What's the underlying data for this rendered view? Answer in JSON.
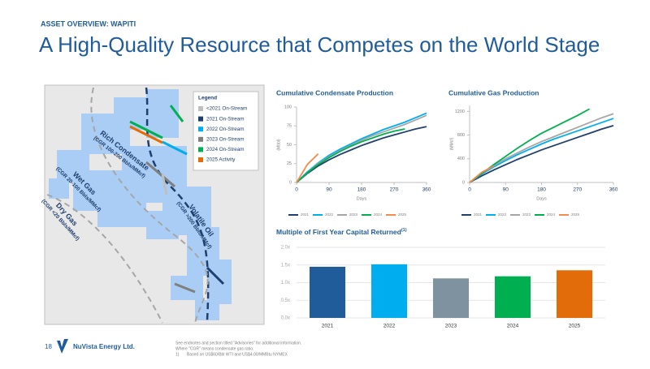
{
  "header": {
    "kicker": "ASSET OVERVIEW: WAPITI",
    "title": "A High-Quality Resource that Competes on the World Stage"
  },
  "map": {
    "legend_title": "Legend",
    "legend": [
      {
        "label": "<2021 On-Stream",
        "color": "#bfbfbf"
      },
      {
        "label": "2021 On-Stream",
        "color": "#1f3f6e"
      },
      {
        "label": "2022 On-Stream",
        "color": "#00adef"
      },
      {
        "label": "2023 On-Stream",
        "color": "#7f7f7f"
      },
      {
        "label": "2024 On-Stream",
        "color": "#00b050"
      },
      {
        "label": "2025 Activity",
        "color": "#e36c0a"
      }
    ],
    "zones": [
      {
        "name": "Rich Condensate",
        "note": "(CGR 100-200 Bbls/MMcf)"
      },
      {
        "name": "Volatile Oil",
        "note": "(CGR >200 Bbls/MMcf)"
      },
      {
        "name": "Wet Gas",
        "note": "(CGR 20-100 Bbls/MMcf)"
      },
      {
        "name": "Dry Gas",
        "note": "(CGR <20 Bbls/MMcf)"
      }
    ]
  },
  "chart_data": [
    {
      "type": "line",
      "title": "Cumulative Condensate Production",
      "y_label": "(Mbbl)",
      "x_label": "Days",
      "x": [
        0,
        30,
        60,
        90,
        120,
        150,
        180,
        210,
        240,
        270,
        300,
        330,
        360
      ],
      "xlim": [
        0,
        360
      ],
      "xticks": [
        0,
        90,
        180,
        270,
        360
      ],
      "ylim": [
        0,
        100
      ],
      "yticks": [
        0,
        25,
        50,
        75,
        100
      ],
      "series": [
        {
          "name": "2021",
          "color": "#1f3f6e",
          "values": [
            0,
            12,
            22,
            30,
            37,
            43,
            49,
            54,
            59,
            63,
            67,
            71,
            74
          ]
        },
        {
          "name": "2022",
          "color": "#00adef",
          "values": [
            0,
            14,
            26,
            36,
            44,
            51,
            58,
            64,
            70,
            75,
            80,
            86,
            92
          ]
        },
        {
          "name": "2023",
          "color": "#a6a6a6",
          "values": [
            0,
            13,
            25,
            34,
            42,
            49,
            56,
            62,
            67,
            72,
            77,
            83,
            89
          ]
        },
        {
          "name": "2024",
          "color": "#00b050",
          "values": [
            0,
            13,
            24,
            33,
            41,
            48,
            54,
            59,
            64,
            68,
            71,
            null,
            null
          ]
        },
        {
          "name": "2025",
          "color": "#f4894b",
          "values": [
            0,
            24,
            38,
            null,
            null,
            null,
            null,
            null,
            null,
            null,
            null,
            null,
            null
          ]
        }
      ]
    },
    {
      "type": "line",
      "title": "Cumulative Gas Production",
      "y_label": "(MMcf)",
      "x_label": "Days",
      "x": [
        0,
        30,
        60,
        90,
        120,
        150,
        180,
        210,
        240,
        270,
        300,
        330,
        360
      ],
      "xlim": [
        0,
        360
      ],
      "xticks": [
        0,
        90,
        180,
        270,
        360
      ],
      "ylim": [
        0,
        1300
      ],
      "yticks": [
        0,
        400,
        800,
        1200
      ],
      "series": [
        {
          "name": "2021",
          "color": "#1f3f6e",
          "values": [
            0,
            110,
            210,
            300,
            390,
            470,
            550,
            620,
            690,
            760,
            830,
            900,
            960
          ]
        },
        {
          "name": "2022",
          "color": "#00adef",
          "values": [
            0,
            140,
            260,
            370,
            470,
            560,
            650,
            730,
            800,
            870,
            940,
            1010,
            1080
          ]
        },
        {
          "name": "2023",
          "color": "#a6a6a6",
          "values": [
            0,
            150,
            280,
            400,
            500,
            600,
            690,
            770,
            850,
            930,
            1010,
            1090,
            1160
          ]
        },
        {
          "name": "2024",
          "color": "#00b050",
          "values": [
            0,
            150,
            300,
            440,
            580,
            710,
            830,
            930,
            1030,
            1130,
            1240,
            null,
            null
          ]
        },
        {
          "name": "2025",
          "color": "#f4894b",
          "values": [
            0,
            170,
            280,
            null,
            null,
            null,
            null,
            null,
            null,
            null,
            null,
            null,
            null
          ]
        }
      ]
    },
    {
      "type": "bar",
      "title": "Multiple of First Year Capital Returned",
      "title_superscript": "(1)",
      "categories": [
        "2021",
        "2022",
        "2023",
        "2024",
        "2025"
      ],
      "values": [
        1.45,
        1.52,
        1.12,
        1.18,
        1.35
      ],
      "colors": [
        "#1f5c99",
        "#00adef",
        "#7f929f",
        "#00b050",
        "#e36c0a"
      ],
      "ylim": [
        0,
        2
      ],
      "yticks": [
        {
          "value": 0,
          "label": "0.0x"
        },
        {
          "value": 0.5,
          "label": "0.5x"
        },
        {
          "value": 1,
          "label": "1.0x"
        },
        {
          "value": 1.5,
          "label": "1.5x"
        },
        {
          "value": 2,
          "label": "2.0x"
        }
      ]
    }
  ],
  "footer": {
    "page": "18",
    "company": "NuVista Energy Ltd.",
    "notes": [
      "See endnotes and section titled \"Advisories\" for additional information.",
      "Where \"CGR\" means condensate gas ratio."
    ],
    "footnote_marker": "1)",
    "footnote": "Based on US$60/Bbl WTI and US$4.00/MMBtu NYMEX"
  }
}
